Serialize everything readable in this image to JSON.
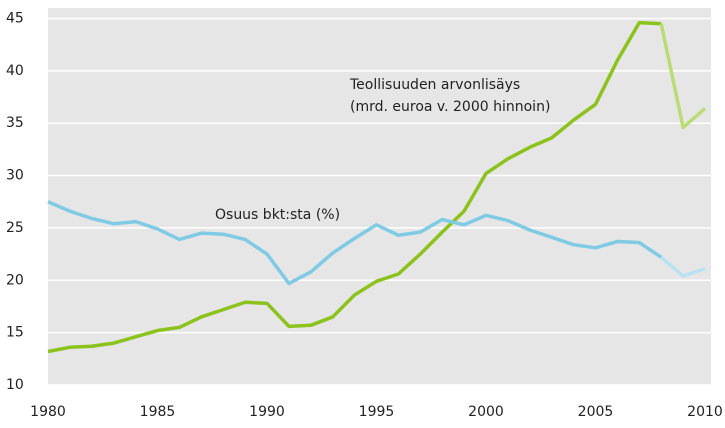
{
  "chart_data": {
    "type": "line",
    "x": [
      1980,
      1981,
      1982,
      1983,
      1984,
      1985,
      1986,
      1987,
      1988,
      1989,
      1990,
      1991,
      1992,
      1993,
      1994,
      1995,
      1996,
      1997,
      1998,
      1999,
      2000,
      2001,
      2002,
      2003,
      2004,
      2005,
      2006,
      2007,
      2008,
      2009,
      2010
    ],
    "series": [
      {
        "name": "Teollisuuden arvonlisäys",
        "color": "#8cc21c",
        "projection_color": "#b9dc74",
        "values": [
          13.2,
          13.6,
          13.7,
          14.0,
          14.6,
          15.2,
          15.5,
          16.5,
          17.2,
          17.9,
          17.8,
          15.6,
          15.7,
          16.5,
          18.6,
          19.9,
          20.6,
          22.5,
          24.6,
          26.6,
          30.2,
          31.6,
          32.7,
          33.6,
          35.3,
          36.8,
          41.0,
          44.6,
          44.5,
          34.6,
          36.4
        ]
      },
      {
        "name": "Osuus bkt:sta (%)",
        "color": "#7fcbe4",
        "projection_color": "#b8e2f0",
        "values": [
          27.5,
          26.6,
          25.9,
          25.4,
          25.6,
          24.9,
          23.9,
          24.5,
          24.4,
          23.9,
          22.5,
          19.7,
          20.8,
          22.6,
          24.0,
          25.3,
          24.3,
          24.6,
          25.8,
          25.3,
          26.2,
          25.7,
          24.8,
          24.1,
          23.4,
          23.1,
          23.7,
          23.6,
          22.2,
          20.4,
          21.1
        ]
      }
    ],
    "projection_start": 2008,
    "annotations": [
      "Teollisuuden arvonlisäys",
      "(mrd. euroa v. 2000 hinnoin)",
      "Osuus bkt:sta (%)"
    ],
    "xlim": [
      1980,
      2010
    ],
    "xticks": [
      1980,
      1985,
      1990,
      1995,
      2000,
      2005,
      2010
    ],
    "ylim": [
      10,
      46
    ],
    "yticks": [
      10,
      15,
      20,
      25,
      30,
      35,
      40,
      45
    ],
    "grid": true,
    "background": "#e6e6e6"
  }
}
